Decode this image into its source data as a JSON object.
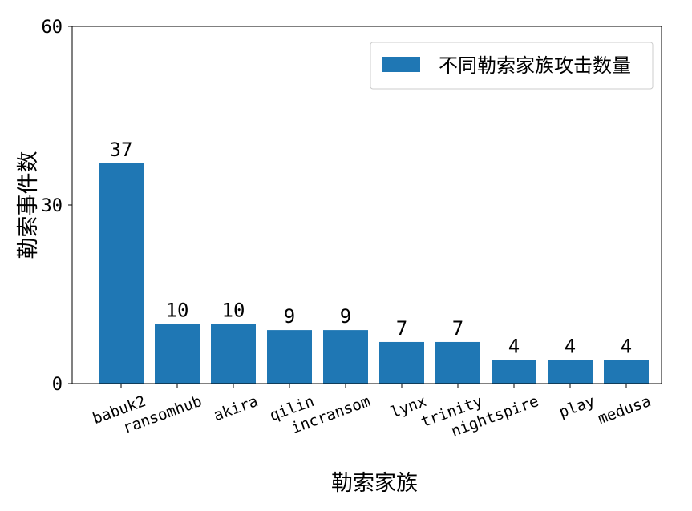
{
  "chart_data": {
    "type": "bar",
    "title": "",
    "xlabel": "勒索家族",
    "ylabel": "勒索事件数",
    "categories": [
      "babuk2",
      "ransomhub",
      "akira",
      "qilin",
      "incransom",
      "lynx",
      "trinity",
      "nightspire",
      "play",
      "medusa"
    ],
    "series": [
      {
        "name": "不同勒索家族攻击数量",
        "values": [
          37,
          10,
          10,
          9,
          9,
          7,
          7,
          4,
          4,
          4
        ]
      }
    ],
    "ylim": [
      0,
      60
    ],
    "yticks": [
      "0",
      "30",
      "60"
    ],
    "data_labels": [
      "37",
      "10",
      "10",
      "9",
      "9",
      "7",
      "7",
      "4",
      "4",
      "4"
    ],
    "grid": false,
    "legend_position": "top-right",
    "bar_color": "#1f77b4"
  }
}
